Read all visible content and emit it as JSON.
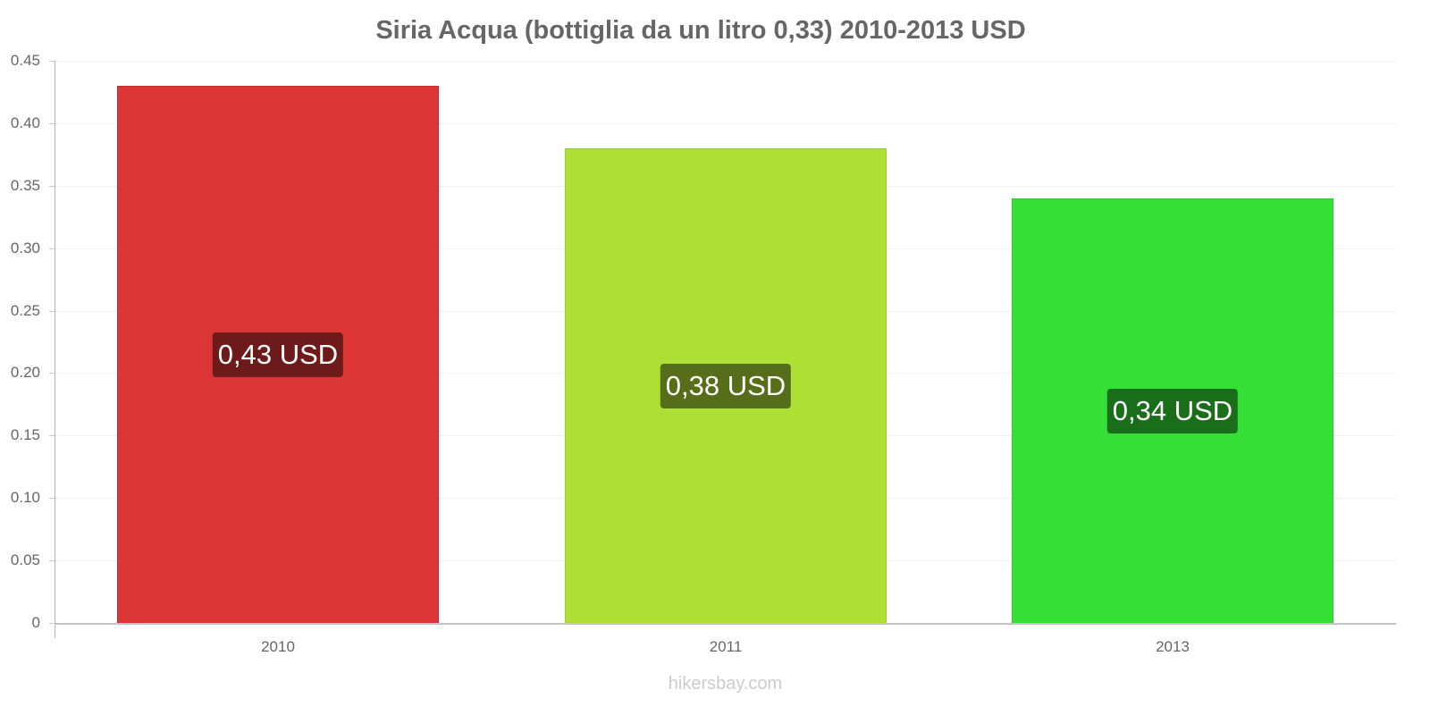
{
  "title": "Siria Acqua (bottiglia da un litro 0,33) 2010-2013 USD",
  "watermark": "hikersbay.com",
  "y_axis": {
    "ticks": [
      "0",
      "0.05",
      "0.10",
      "0.15",
      "0.20",
      "0.25",
      "0.30",
      "0.35",
      "0.40",
      "0.45"
    ]
  },
  "bars": [
    {
      "category": "2010",
      "value": 0.43,
      "label": "0,43 USD",
      "color": "#dc3535",
      "border": "#c03030",
      "label_bg": "#6e1a1a"
    },
    {
      "category": "2011",
      "value": 0.38,
      "label": "0,38 USD",
      "color": "#addf35",
      "border": "#9ccb30",
      "label_bg": "#566e1a"
    },
    {
      "category": "2013",
      "value": 0.34,
      "label": "0,34 USD",
      "color": "#35df35",
      "border": "#30c930",
      "label_bg": "#1a6e1a"
    }
  ],
  "chart_data": {
    "type": "bar",
    "title": "Siria Acqua (bottiglia da un litro 0,33) 2010-2013 USD",
    "categories": [
      "2010",
      "2011",
      "2013"
    ],
    "values": [
      0.43,
      0.38,
      0.34
    ],
    "data_labels": [
      "0,43 USD",
      "0,38 USD",
      "0,34 USD"
    ],
    "colors": [
      "#dc3535",
      "#addf35",
      "#35df35"
    ],
    "xlabel": "",
    "ylabel": "",
    "ylim": [
      0,
      0.45
    ],
    "yticks": [
      0,
      0.05,
      0.1,
      0.15,
      0.2,
      0.25,
      0.3,
      0.35,
      0.4,
      0.45
    ],
    "grid": true,
    "legend": "none"
  }
}
